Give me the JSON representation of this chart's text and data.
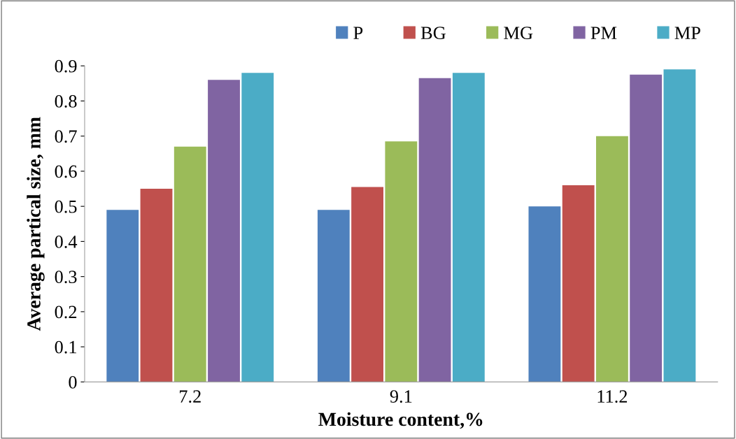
{
  "chart_data": {
    "type": "bar",
    "xlabel": "Moisture content,%",
    "ylabel": "Average partical size, mm",
    "categories": [
      "7.2",
      "9.1",
      "11.2"
    ],
    "series": [
      {
        "name": "P",
        "color": "#4f81bd",
        "values": [
          0.49,
          0.49,
          0.5
        ]
      },
      {
        "name": "BG",
        "color": "#c0504d",
        "values": [
          0.55,
          0.555,
          0.56
        ]
      },
      {
        "name": "MG",
        "color": "#9bbb59",
        "values": [
          0.67,
          0.685,
          0.7
        ]
      },
      {
        "name": "PM",
        "color": "#8064a2",
        "values": [
          0.86,
          0.865,
          0.875
        ]
      },
      {
        "name": "MP",
        "color": "#4bacc6",
        "values": [
          0.88,
          0.88,
          0.89
        ]
      }
    ],
    "ylim": [
      0,
      0.9
    ],
    "yticks": [
      0,
      0.1,
      0.2,
      0.3,
      0.4,
      0.5,
      0.6,
      0.7,
      0.8,
      0.9
    ],
    "grid": false,
    "legend": "top right"
  }
}
